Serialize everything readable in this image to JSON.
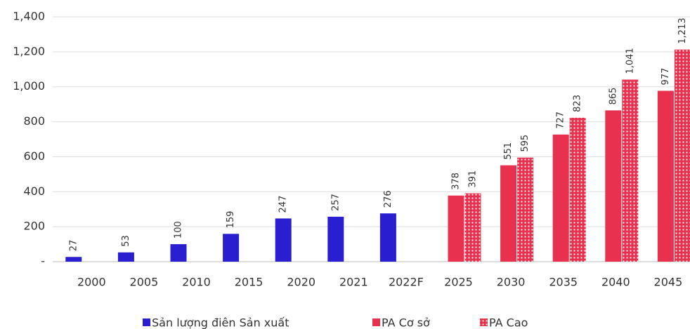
{
  "chart_data": {
    "type": "bar",
    "categories": [
      "2000",
      "2005",
      "2010",
      "2015",
      "2020",
      "2021",
      "2022F",
      "2025",
      "2030",
      "2035",
      "2040",
      "2045"
    ],
    "series": [
      {
        "name": "Sản lượng điên Sản xuất",
        "color": "#2a1fd0",
        "values": [
          27,
          53,
          100,
          159,
          247,
          257,
          276,
          null,
          null,
          null,
          null,
          null
        ]
      },
      {
        "name": "PA Cơ sở",
        "color": "#e8304f",
        "values": [
          null,
          null,
          null,
          null,
          null,
          null,
          null,
          378,
          551,
          727,
          865,
          977
        ]
      },
      {
        "name": "PA Cao",
        "color": "#e8304f",
        "pattern": "dots",
        "values": [
          null,
          null,
          null,
          null,
          null,
          null,
          null,
          391,
          595,
          823,
          1041,
          1213
        ],
        "value_labels": [
          null,
          null,
          null,
          null,
          null,
          null,
          null,
          "391",
          "595",
          "823",
          "1,041",
          "1,213"
        ]
      }
    ],
    "ylim": [
      0,
      1400
    ],
    "yticks": [
      {
        "value": 0,
        "label": "-"
      },
      200,
      400,
      600,
      800,
      {
        "value": 1000,
        "label": "1,000"
      },
      {
        "value": 1200,
        "label": "1,200"
      },
      {
        "value": 1400,
        "label": "1,400"
      }
    ],
    "grid": true,
    "legend": "bottom"
  }
}
